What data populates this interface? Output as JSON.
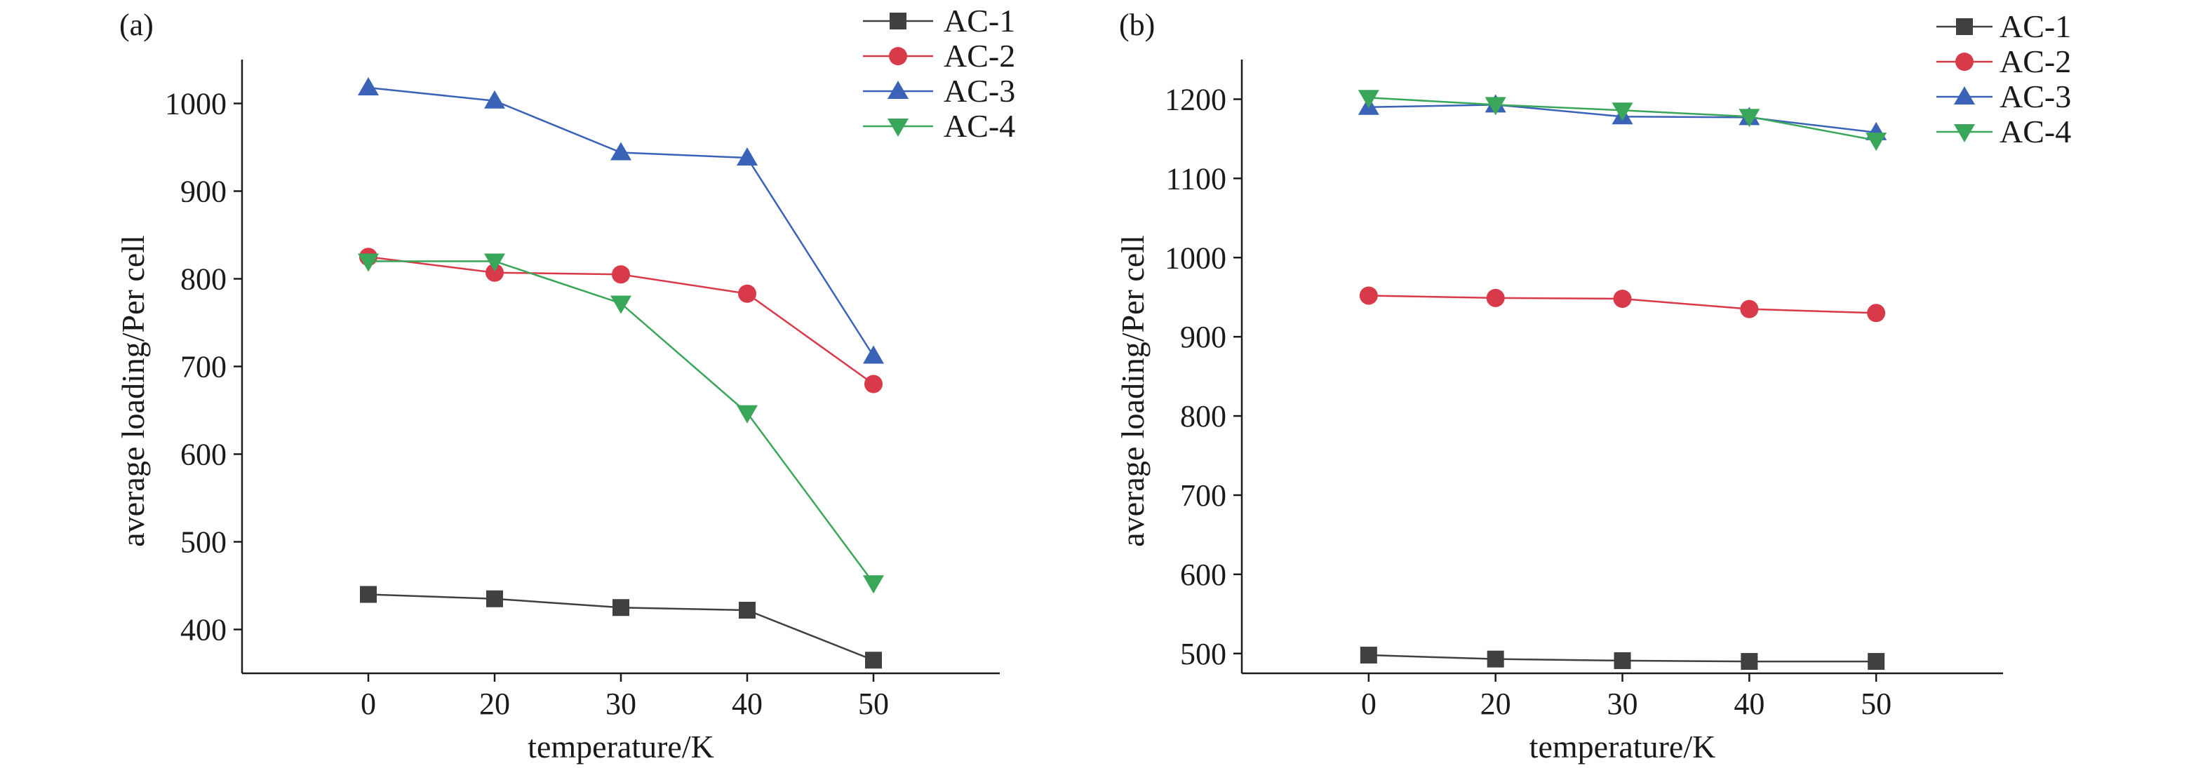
{
  "chart_data": [
    {
      "type": "line",
      "panel_label": "(a)",
      "xlabel": "temperature/K",
      "ylabel": "average loading/Per cell",
      "categories": [
        "0",
        "20",
        "30",
        "40",
        "50"
      ],
      "xlim": [
        -1,
        5
      ],
      "ylim": [
        350,
        1050
      ],
      "yticks": [
        400,
        500,
        600,
        700,
        800,
        900,
        1000
      ],
      "legend_position": "top-right",
      "series": [
        {
          "name": "AC-1",
          "color": "#404040",
          "marker": "square",
          "values": [
            440,
            435,
            425,
            422,
            365
          ]
        },
        {
          "name": "AC-2",
          "color": "#d83a4a",
          "marker": "circle",
          "values": [
            825,
            807,
            805,
            783,
            680
          ]
        },
        {
          "name": "AC-3",
          "color": "#3a63b8",
          "marker": "triangle-up",
          "values": [
            1018,
            1003,
            944,
            938,
            712
          ]
        },
        {
          "name": "AC-4",
          "color": "#3aa65a",
          "marker": "triangle-down",
          "values": [
            820,
            820,
            772,
            647,
            453
          ]
        }
      ]
    },
    {
      "type": "line",
      "panel_label": "(b)",
      "xlabel": "temperature/K",
      "ylabel": "average loading/Per cell",
      "categories": [
        "0",
        "20",
        "30",
        "40",
        "50"
      ],
      "xlim": [
        -1,
        5
      ],
      "ylim": [
        475,
        1250
      ],
      "yticks": [
        500,
        600,
        700,
        800,
        900,
        1000,
        1100,
        1200
      ],
      "legend_position": "top-right",
      "series": [
        {
          "name": "AC-1",
          "color": "#404040",
          "marker": "square",
          "values": [
            498,
            493,
            491,
            490,
            490
          ]
        },
        {
          "name": "AC-2",
          "color": "#d83a4a",
          "marker": "circle",
          "values": [
            952,
            949,
            948,
            935,
            930
          ]
        },
        {
          "name": "AC-3",
          "color": "#3a63b8",
          "marker": "triangle-up",
          "values": [
            1190,
            1193,
            1178,
            1177,
            1158
          ]
        },
        {
          "name": "AC-4",
          "color": "#3aa65a",
          "marker": "triangle-down",
          "values": [
            1202,
            1193,
            1186,
            1178,
            1148
          ]
        }
      ]
    }
  ]
}
